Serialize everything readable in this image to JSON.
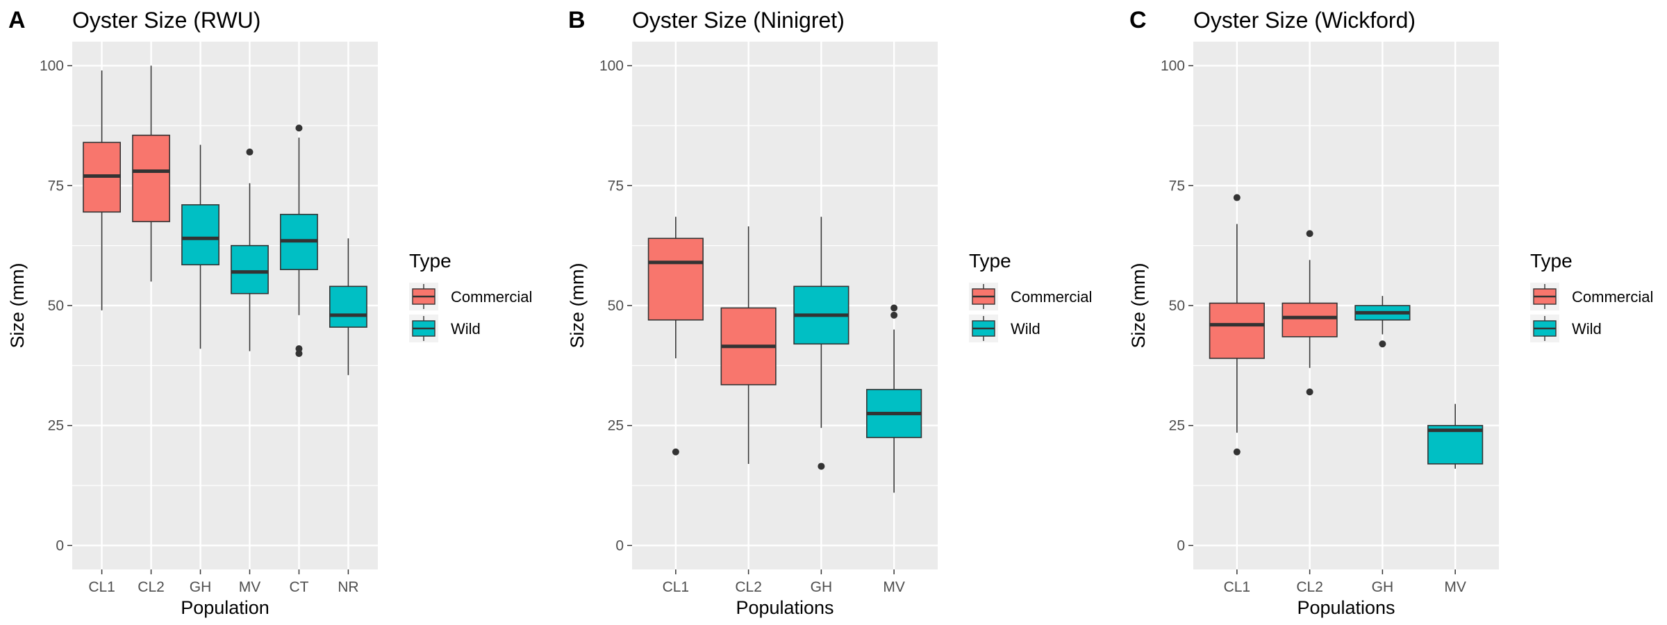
{
  "figure": {
    "colors": {
      "Commercial": "#F8766D",
      "Wild": "#00BFC4",
      "panel_bg": "#EBEBEB",
      "grid": "#FFFFFF"
    }
  },
  "chart_data": [
    {
      "type": "box",
      "panel_label": "A",
      "title": "Oyster Size (RWU)",
      "xlabel": "Population",
      "ylabel": "Size (mm)",
      "ylim": [
        -5,
        105
      ],
      "yticks": [
        0,
        25,
        50,
        75,
        100
      ],
      "categories": [
        "CL1",
        "CL2",
        "GH",
        "MV",
        "CT",
        "NR"
      ],
      "legend": {
        "title": "Type",
        "entries": [
          "Commercial",
          "Wild"
        ],
        "position": "right"
      },
      "boxes": [
        {
          "category": "CL1",
          "type": "Commercial",
          "whisker_low": 49,
          "q1": 69.5,
          "median": 77,
          "q3": 84,
          "whisker_high": 99,
          "outliers": []
        },
        {
          "category": "CL2",
          "type": "Commercial",
          "whisker_low": 55,
          "q1": 67.5,
          "median": 78,
          "q3": 85.5,
          "whisker_high": 100,
          "outliers": []
        },
        {
          "category": "GH",
          "type": "Wild",
          "whisker_low": 41,
          "q1": 58.5,
          "median": 64,
          "q3": 71,
          "whisker_high": 83.5,
          "outliers": []
        },
        {
          "category": "MV",
          "type": "Wild",
          "whisker_low": 40.5,
          "q1": 52.5,
          "median": 57,
          "q3": 62.5,
          "whisker_high": 75.5,
          "outliers": [
            82
          ]
        },
        {
          "category": "CT",
          "type": "Wild",
          "whisker_low": 48,
          "q1": 57.5,
          "median": 63.5,
          "q3": 69,
          "whisker_high": 85,
          "outliers": [
            87,
            40,
            41
          ]
        },
        {
          "category": "NR",
          "type": "Wild",
          "whisker_low": 35.5,
          "q1": 45.5,
          "median": 48,
          "q3": 54,
          "whisker_high": 64,
          "outliers": []
        }
      ]
    },
    {
      "type": "box",
      "panel_label": "B",
      "title": "Oyster Size (Ninigret)",
      "xlabel": "Populations",
      "ylabel": "Size (mm)",
      "ylim": [
        -5,
        105
      ],
      "yticks": [
        0,
        25,
        50,
        75,
        100
      ],
      "categories": [
        "CL1",
        "CL2",
        "GH",
        "MV"
      ],
      "legend": {
        "title": "Type",
        "entries": [
          "Commercial",
          "Wild"
        ],
        "position": "right"
      },
      "boxes": [
        {
          "category": "CL1",
          "type": "Commercial",
          "whisker_low": 39,
          "q1": 47,
          "median": 59,
          "q3": 64,
          "whisker_high": 68.5,
          "outliers": [
            19.5
          ]
        },
        {
          "category": "CL2",
          "type": "Commercial",
          "whisker_low": 17,
          "q1": 33.5,
          "median": 41.5,
          "q3": 49.5,
          "whisker_high": 66.5,
          "outliers": []
        },
        {
          "category": "GH",
          "type": "Wild",
          "whisker_low": 24.5,
          "q1": 42,
          "median": 48,
          "q3": 54,
          "whisker_high": 68.5,
          "outliers": [
            16.5
          ]
        },
        {
          "category": "MV",
          "type": "Wild",
          "whisker_low": 11,
          "q1": 22.5,
          "median": 27.5,
          "q3": 32.5,
          "whisker_high": 45,
          "outliers": [
            48,
            49.5
          ]
        }
      ]
    },
    {
      "type": "box",
      "panel_label": "C",
      "title": "Oyster Size (Wickford)",
      "xlabel": "Populations",
      "ylabel": "Size (mm)",
      "ylim": [
        -5,
        105
      ],
      "yticks": [
        0,
        25,
        50,
        75,
        100
      ],
      "categories": [
        "CL1",
        "CL2",
        "GH",
        "MV"
      ],
      "legend": {
        "title": "Type",
        "entries": [
          "Commercial",
          "Wild"
        ],
        "position": "right"
      },
      "boxes": [
        {
          "category": "CL1",
          "type": "Commercial",
          "whisker_low": 23.5,
          "q1": 39,
          "median": 46,
          "q3": 50.5,
          "whisker_high": 67,
          "outliers": [
            72.5,
            19.5
          ]
        },
        {
          "category": "CL2",
          "type": "Commercial",
          "whisker_low": 37,
          "q1": 43.5,
          "median": 47.5,
          "q3": 50.5,
          "whisker_high": 59.5,
          "outliers": [
            65,
            32
          ]
        },
        {
          "category": "GH",
          "type": "Wild",
          "whisker_low": 44,
          "q1": 47,
          "median": 48.5,
          "q3": 50,
          "whisker_high": 52,
          "outliers": [
            42
          ]
        },
        {
          "category": "MV",
          "type": "Wild",
          "whisker_low": 16,
          "q1": 17,
          "median": 24,
          "q3": 25,
          "whisker_high": 29.5,
          "outliers": []
        }
      ]
    }
  ]
}
